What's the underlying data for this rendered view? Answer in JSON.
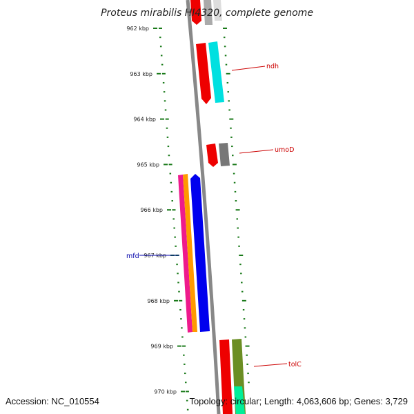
{
  "title": "Proteus mirabilis HI4320, complete genome",
  "accession": "Accession: NC_010554",
  "summary": "Topology: circular; Length: 4,063,606 bp; Genes: 3,729",
  "colors": {
    "backbone": "#888888",
    "tick": "#1a7a1a",
    "label_red": "#cc0000",
    "label_blue": "#0000aa"
  },
  "ruler": [
    {
      "label": "962 kbp"
    },
    {
      "label": "963 kbp"
    },
    {
      "label": "964 kbp"
    },
    {
      "label": "965 kbp"
    },
    {
      "label": "966 kbp"
    },
    {
      "label": "967 kbp"
    },
    {
      "label": "968 kbp"
    },
    {
      "label": "969 kbp"
    },
    {
      "label": "970 kbp"
    }
  ],
  "gene_labels": [
    {
      "name": "ndh",
      "color": "#cc0000"
    },
    {
      "name": "umoD",
      "color": "#cc0000"
    },
    {
      "name": "mfd",
      "color": "#0000aa"
    },
    {
      "name": "tolC",
      "color": "#cc0000"
    }
  ]
}
